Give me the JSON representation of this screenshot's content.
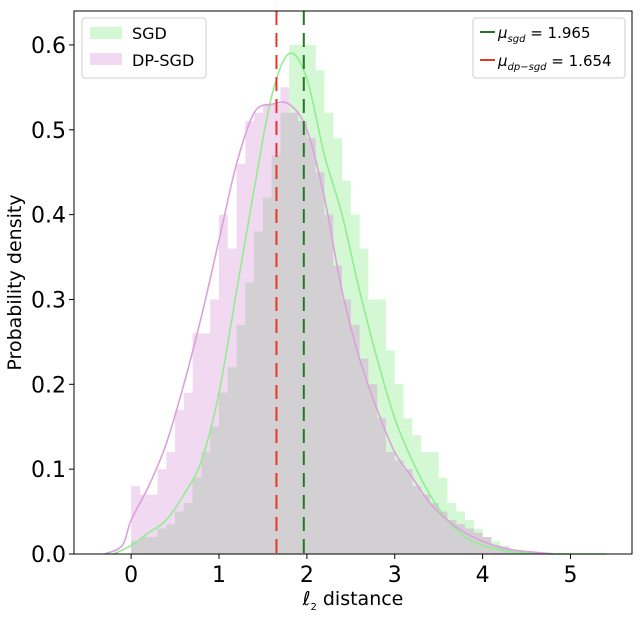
{
  "chart_data": {
    "type": "histogram",
    "xlabel_main": "ℓ",
    "xlabel_sub": "2",
    "xlabel_rest": " distance",
    "ylabel": "Probability density",
    "xlim": [
      -0.65,
      5.7
    ],
    "ylim": [
      0,
      0.64
    ],
    "xticks": [
      0,
      1,
      2,
      3,
      4,
      5
    ],
    "yticks": [
      0.0,
      0.1,
      0.2,
      0.3,
      0.4,
      0.5,
      0.6
    ],
    "ytick_labels": [
      "0.0",
      "0.1",
      "0.2",
      "0.3",
      "0.4",
      "0.5",
      "0.6"
    ],
    "bin_start": 0.0,
    "bin_width": 0.1,
    "series": [
      {
        "name": "SGD",
        "fill": "#90ee90",
        "line": "#90ee90",
        "hist": [
          0.015,
          0.02,
          0.02,
          0.03,
          0.035,
          0.05,
          0.06,
          0.09,
          0.12,
          0.15,
          0.19,
          0.22,
          0.27,
          0.32,
          0.38,
          0.42,
          0.47,
          0.52,
          0.6,
          0.6,
          0.6,
          0.57,
          0.52,
          0.49,
          0.44,
          0.4,
          0.36,
          0.3,
          0.3,
          0.24,
          0.2,
          0.16,
          0.14,
          0.12,
          0.12,
          0.09,
          0.06,
          0.05,
          0.04,
          0.03,
          0.02,
          0.015,
          0.01,
          0.005,
          0.005,
          0.003,
          0.002,
          0.002,
          0.001,
          0.001
        ],
        "kde_x": [
          -0.2,
          0.0,
          0.2,
          0.4,
          0.6,
          0.8,
          1.0,
          1.2,
          1.4,
          1.6,
          1.8,
          2.0,
          2.2,
          2.4,
          2.6,
          2.8,
          3.0,
          3.2,
          3.4,
          3.6,
          3.8,
          4.0,
          4.2,
          4.4,
          4.6,
          4.8,
          5.0,
          5.2,
          5.4
        ],
        "kde_y": [
          0.0,
          0.01,
          0.025,
          0.04,
          0.07,
          0.11,
          0.19,
          0.31,
          0.43,
          0.54,
          0.59,
          0.56,
          0.47,
          0.4,
          0.31,
          0.23,
          0.16,
          0.11,
          0.07,
          0.04,
          0.02,
          0.01,
          0.005,
          0.002,
          0.001,
          0.0,
          0.0,
          0.0,
          0.0
        ]
      },
      {
        "name": "DP-SGD",
        "fill": "#dda0dd",
        "line": "#dda0dd",
        "hist": [
          0.08,
          0.07,
          0.07,
          0.1,
          0.12,
          0.17,
          0.19,
          0.26,
          0.26,
          0.3,
          0.4,
          0.36,
          0.46,
          0.51,
          0.52,
          0.53,
          0.53,
          0.55,
          0.52,
          0.51,
          0.49,
          0.45,
          0.4,
          0.34,
          0.3,
          0.27,
          0.23,
          0.2,
          0.16,
          0.12,
          0.11,
          0.1,
          0.08,
          0.07,
          0.06,
          0.05,
          0.04,
          0.035,
          0.03,
          0.025,
          0.02,
          0.01,
          0.008,
          0.005,
          0.003,
          0.002,
          0.001,
          0.001,
          0.0,
          0.0
        ],
        "kde_x": [
          -0.3,
          -0.1,
          0.0,
          0.2,
          0.4,
          0.6,
          0.8,
          1.0,
          1.2,
          1.4,
          1.6,
          1.8,
          2.0,
          2.2,
          2.4,
          2.6,
          2.8,
          3.0,
          3.2,
          3.4,
          3.6,
          3.8,
          4.0,
          4.2,
          4.4,
          4.6,
          4.8
        ],
        "kde_y": [
          0.0,
          0.01,
          0.04,
          0.08,
          0.13,
          0.2,
          0.28,
          0.37,
          0.46,
          0.52,
          0.53,
          0.53,
          0.5,
          0.42,
          0.31,
          0.23,
          0.17,
          0.12,
          0.09,
          0.06,
          0.04,
          0.025,
          0.015,
          0.008,
          0.004,
          0.002,
          0.0
        ]
      }
    ],
    "mean_lines": [
      {
        "label_mu": "μ",
        "label_sub": "sgd",
        "label_value": " = 1.965",
        "value": 1.965,
        "color": "#1f7a1f"
      },
      {
        "label_mu": "μ",
        "label_sub": "dp−sgd",
        "label_value": " = 1.654",
        "value": 1.654,
        "color": "#e8352a"
      }
    ],
    "overlap_color": "#d3d0d3",
    "legend_left_position": "top-left",
    "legend_right_position": "top-right",
    "grid": false
  }
}
